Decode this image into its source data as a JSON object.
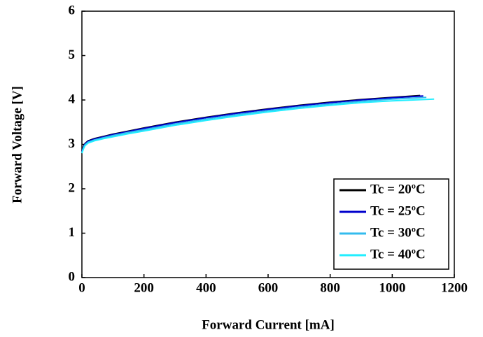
{
  "chart_data": {
    "type": "line",
    "x_label": "Forward Current [mA]",
    "y_label": "Forward Voltage [V]",
    "xlim": [
      0,
      1200
    ],
    "xticks": [
      0,
      200,
      400,
      600,
      800,
      1000,
      1200
    ],
    "ylim": [
      0,
      6
    ],
    "yticks": [
      0,
      1,
      2,
      3,
      4,
      5,
      6
    ],
    "legend": "lower right",
    "series": [
      {
        "name": "Tc = 20ºC",
        "color": "#000000",
        "x": [
          0,
          5,
          10,
          20,
          40,
          70,
          100,
          150,
          200,
          300,
          400,
          500,
          600,
          700,
          800,
          900,
          1000,
          1090
        ],
        "values": [
          2.85,
          2.95,
          3.02,
          3.08,
          3.13,
          3.18,
          3.23,
          3.3,
          3.37,
          3.5,
          3.61,
          3.71,
          3.8,
          3.88,
          3.95,
          4.01,
          4.06,
          4.1
        ]
      },
      {
        "name": "Tc = 25ºC",
        "color": "#0000cc",
        "x": [
          0,
          5,
          10,
          20,
          40,
          70,
          100,
          150,
          200,
          300,
          400,
          500,
          600,
          700,
          800,
          900,
          1000,
          1100
        ],
        "values": [
          2.84,
          2.94,
          3.01,
          3.07,
          3.12,
          3.17,
          3.22,
          3.29,
          3.36,
          3.49,
          3.6,
          3.7,
          3.79,
          3.87,
          3.94,
          4.0,
          4.05,
          4.09
        ]
      },
      {
        "name": "Tc = 30ºC",
        "color": "#33bbee",
        "x": [
          0,
          5,
          10,
          20,
          40,
          70,
          100,
          150,
          200,
          300,
          400,
          500,
          600,
          700,
          800,
          900,
          1000,
          1110
        ],
        "values": [
          2.82,
          2.92,
          2.99,
          3.05,
          3.1,
          3.15,
          3.2,
          3.27,
          3.33,
          3.46,
          3.57,
          3.67,
          3.76,
          3.84,
          3.91,
          3.97,
          4.02,
          4.06
        ]
      },
      {
        "name": "Tc = 40ºC",
        "color": "#22eeff",
        "x": [
          0,
          5,
          10,
          20,
          40,
          70,
          100,
          150,
          200,
          300,
          400,
          500,
          600,
          700,
          800,
          900,
          1000,
          1135
        ],
        "values": [
          2.8,
          2.9,
          2.97,
          3.03,
          3.08,
          3.13,
          3.17,
          3.24,
          3.3,
          3.43,
          3.54,
          3.64,
          3.73,
          3.81,
          3.88,
          3.94,
          3.98,
          4.02
        ]
      }
    ]
  }
}
